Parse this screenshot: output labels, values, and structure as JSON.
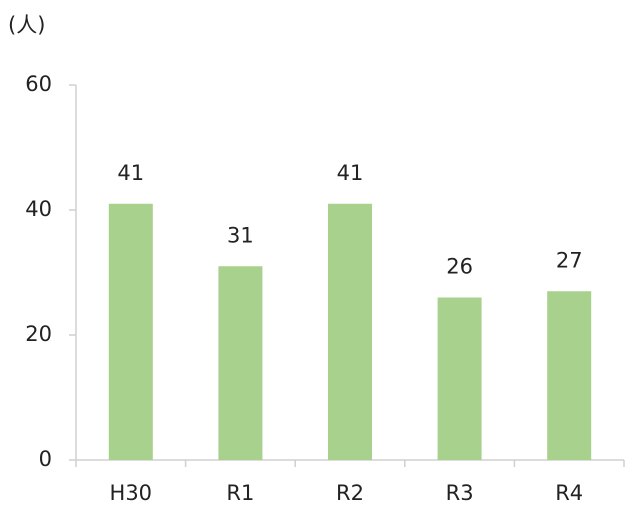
{
  "chart_data": {
    "type": "bar",
    "y_label": "(人)",
    "categories": [
      "H30",
      "R1",
      "R2",
      "R3",
      "R4"
    ],
    "values": [
      41,
      31,
      41,
      26,
      27
    ],
    "color": "#a9d18e",
    "ylim": [
      0,
      60
    ],
    "yticks": [
      0,
      20,
      40,
      60
    ],
    "grid": false
  }
}
